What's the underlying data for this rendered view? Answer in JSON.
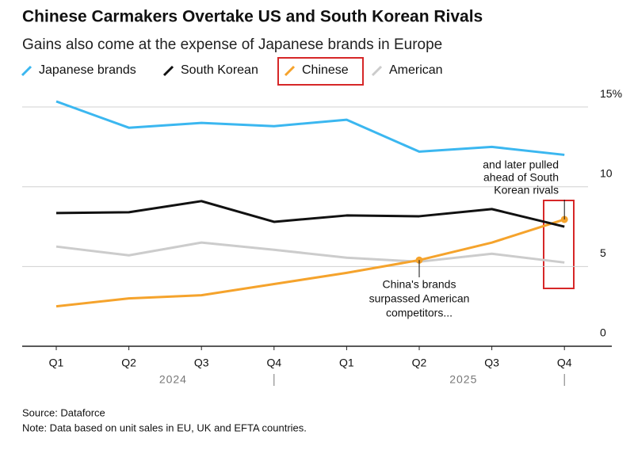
{
  "chart_data": {
    "type": "line",
    "title": "Chinese Carmakers Overtake US and South Korean Rivals",
    "subtitle": "Gains also come at the expense of Japanese brands in Europe",
    "categories": [
      "Q1",
      "Q2",
      "Q3",
      "Q4",
      "Q1",
      "Q2",
      "Q3",
      "Q4"
    ],
    "year_labels": [
      "2024",
      "2025"
    ],
    "series": [
      {
        "name": "Japanese brands",
        "color": "#3bb7f0",
        "values": [
          15.35,
          13.7,
          14.0,
          13.8,
          14.2,
          12.2,
          12.5,
          12.0
        ]
      },
      {
        "name": "South Korean",
        "color": "#111111",
        "values": [
          8.35,
          8.4,
          9.1,
          7.8,
          8.2,
          8.15,
          8.6,
          7.5
        ]
      },
      {
        "name": "Chinese",
        "color": "#f5a32c",
        "values": [
          2.5,
          3.0,
          3.2,
          3.9,
          4.6,
          5.4,
          6.5,
          7.95
        ]
      },
      {
        "name": "American",
        "color": "#cccccc",
        "values": [
          6.25,
          5.7,
          6.5,
          6.05,
          5.55,
          5.3,
          5.8,
          5.25
        ]
      }
    ],
    "ylim": [
      0,
      16
    ],
    "yticks": [
      0,
      5,
      10,
      {
        "value": 15,
        "label": "15%"
      }
    ],
    "grid": true,
    "annotations": [
      {
        "lines": [
          "China's brands",
          "surpassed American",
          "competitors..."
        ]
      },
      {
        "lines": [
          "and later pulled",
          "ahead of South",
          "Korean rivals"
        ]
      }
    ],
    "source": "Source: Dataforce",
    "note": "Note: Data based on unit sales in EU, UK and EFTA countries."
  }
}
